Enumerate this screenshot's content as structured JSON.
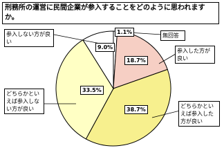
{
  "chart_data": {
    "type": "pie",
    "title": "刑務所の運営に民間企業が参入することをどのように思われますか。",
    "categories": [
      "無回答",
      "参入した方が良い",
      "どちらかといえば参入した方が良い",
      "どちらかといえば参入しない方が良い",
      "参入しない方が良い"
    ],
    "values": [
      1.1,
      18.7,
      38.7,
      33.5,
      9.0
    ],
    "value_labels": [
      "1.1%",
      "18.7%",
      "38.7%",
      "33.5%",
      "9.0%"
    ],
    "colors": [
      "#ffffff",
      "#f6cfc4",
      "#f7f08e",
      "#ffffc4",
      "#ffffff"
    ]
  }
}
